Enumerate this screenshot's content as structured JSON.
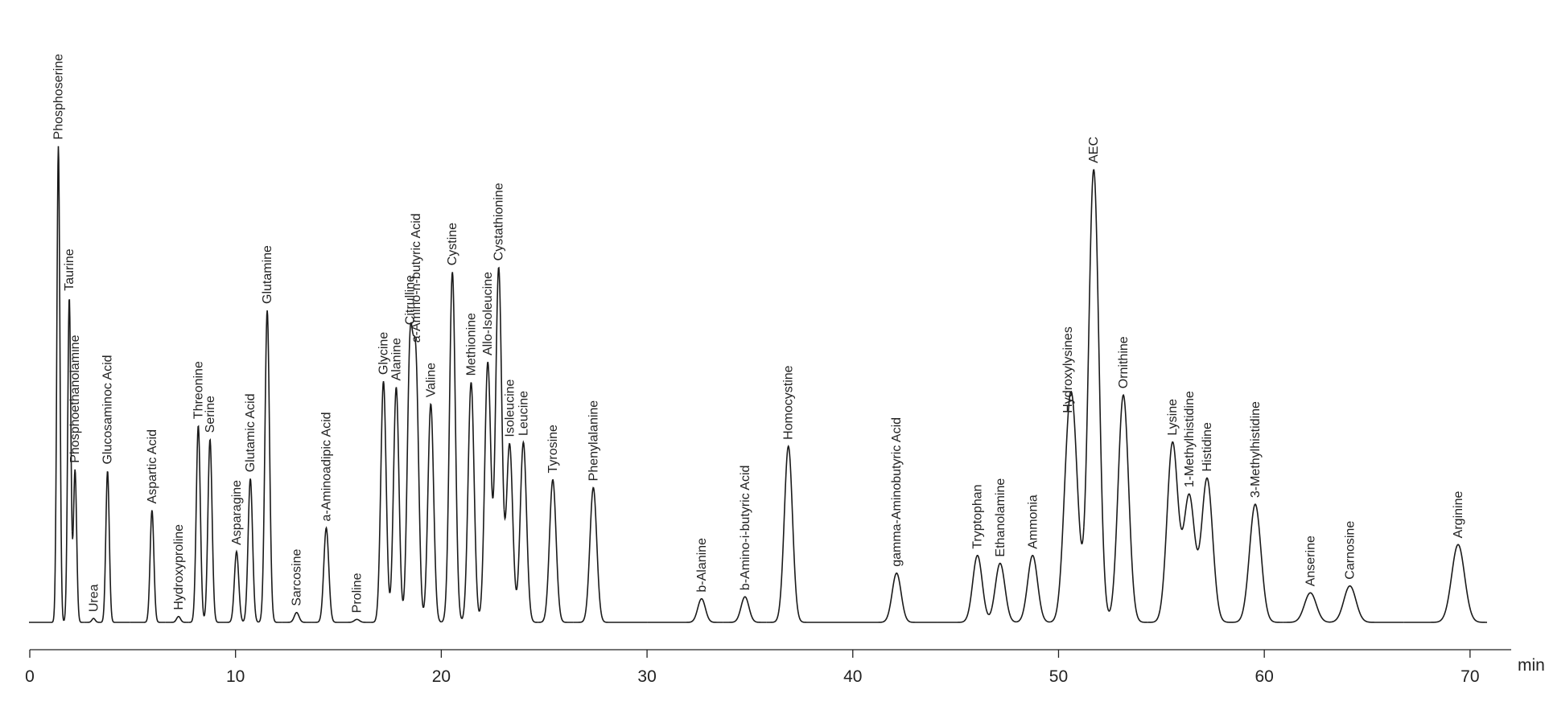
{
  "chart_data": {
    "type": "chromatogram",
    "x_label": "min",
    "xlim": [
      0,
      72
    ],
    "xticks": [
      0,
      10,
      20,
      30,
      40,
      50,
      60,
      70
    ],
    "ylim": [
      0,
      500
    ],
    "color": "#1a1a1a",
    "categories": [
      "Phosphoserine",
      "Taurine",
      "Phosphoethanolamine",
      "Urea",
      "Glucosaminoc Acid",
      "Aspartic Acid",
      "Hydroxyproline",
      "Threonine",
      "Serine",
      "Asparagine",
      "Glutamic Acid",
      "Glutamine",
      "Sarcosine",
      "a-Aminoadipic Acid",
      "Proline",
      "Glycine",
      "Alanine",
      "Citrulline",
      "a-Amino-n-butyric Acid",
      "Valine",
      "Cystine",
      "Methionine",
      "Allo-Isoleucine",
      "Cystathionine",
      "Isoleucine",
      "Leucine",
      "Tyrosine",
      "Phenylalanine",
      "b-Alanine",
      "b-Amino-i-butyric Acid",
      "Homocystine",
      "gamma-Aminobutyric Acid",
      "Tryptophan",
      "Ethanolamine",
      "Ammonia",
      "Hydroxylysines",
      null,
      "AEC",
      "Ornithine",
      "Lysine",
      "1-Methylhistidine",
      "Histidine",
      "3-Methylhistidine",
      "Anserine",
      "Carnosine",
      "Arginine"
    ],
    "x": [
      1.39,
      1.92,
      2.2,
      3.1,
      3.78,
      5.94,
      7.23,
      8.19,
      8.76,
      10.05,
      10.72,
      11.54,
      12.97,
      14.41,
      15.9,
      17.19,
      17.81,
      18.48,
      18.77,
      19.49,
      20.54,
      21.45,
      22.26,
      22.79,
      23.32,
      23.99,
      25.42,
      27.39,
      32.65,
      34.76,
      36.87,
      42.13,
      46.06,
      47.16,
      48.74,
      50.45,
      50.75,
      51.71,
      53.15,
      55.54,
      56.35,
      57.22,
      59.56,
      62.24,
      64.16,
      69.42
    ],
    "values": [
      484,
      330,
      155,
      4,
      154,
      114,
      6,
      200,
      186,
      72,
      146,
      317,
      10,
      96,
      3,
      245,
      239,
      270,
      251,
      222,
      356,
      244,
      264,
      360,
      181,
      183,
      145,
      137,
      24,
      26,
      179,
      50,
      68,
      60,
      68,
      136,
      146,
      460,
      231,
      182,
      128,
      146,
      120,
      30,
      37,
      79
    ]
  }
}
